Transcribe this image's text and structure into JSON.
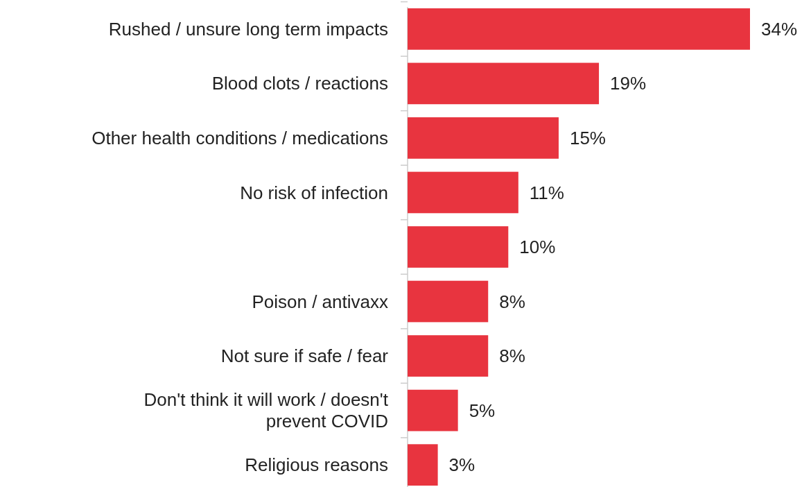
{
  "chart_data": {
    "type": "bar",
    "orientation": "horizontal",
    "categories": [
      "Rushed / unsure long term impacts",
      "Blood clots / reactions",
      "Other health conditions / medications",
      "No risk of infection",
      null,
      "Poison / antivaxx",
      "Not sure if safe / fear",
      "Don't think it will work / doesn't prevent COVID",
      "Religious reasons"
    ],
    "values": [
      34,
      19,
      15,
      11,
      10,
      8,
      8,
      5,
      3
    ],
    "value_labels": [
      "34%",
      "19%",
      "15%",
      "11%",
      "10%",
      "8%",
      "8%",
      "5%",
      "3%"
    ],
    "color": "#e8343f"
  }
}
